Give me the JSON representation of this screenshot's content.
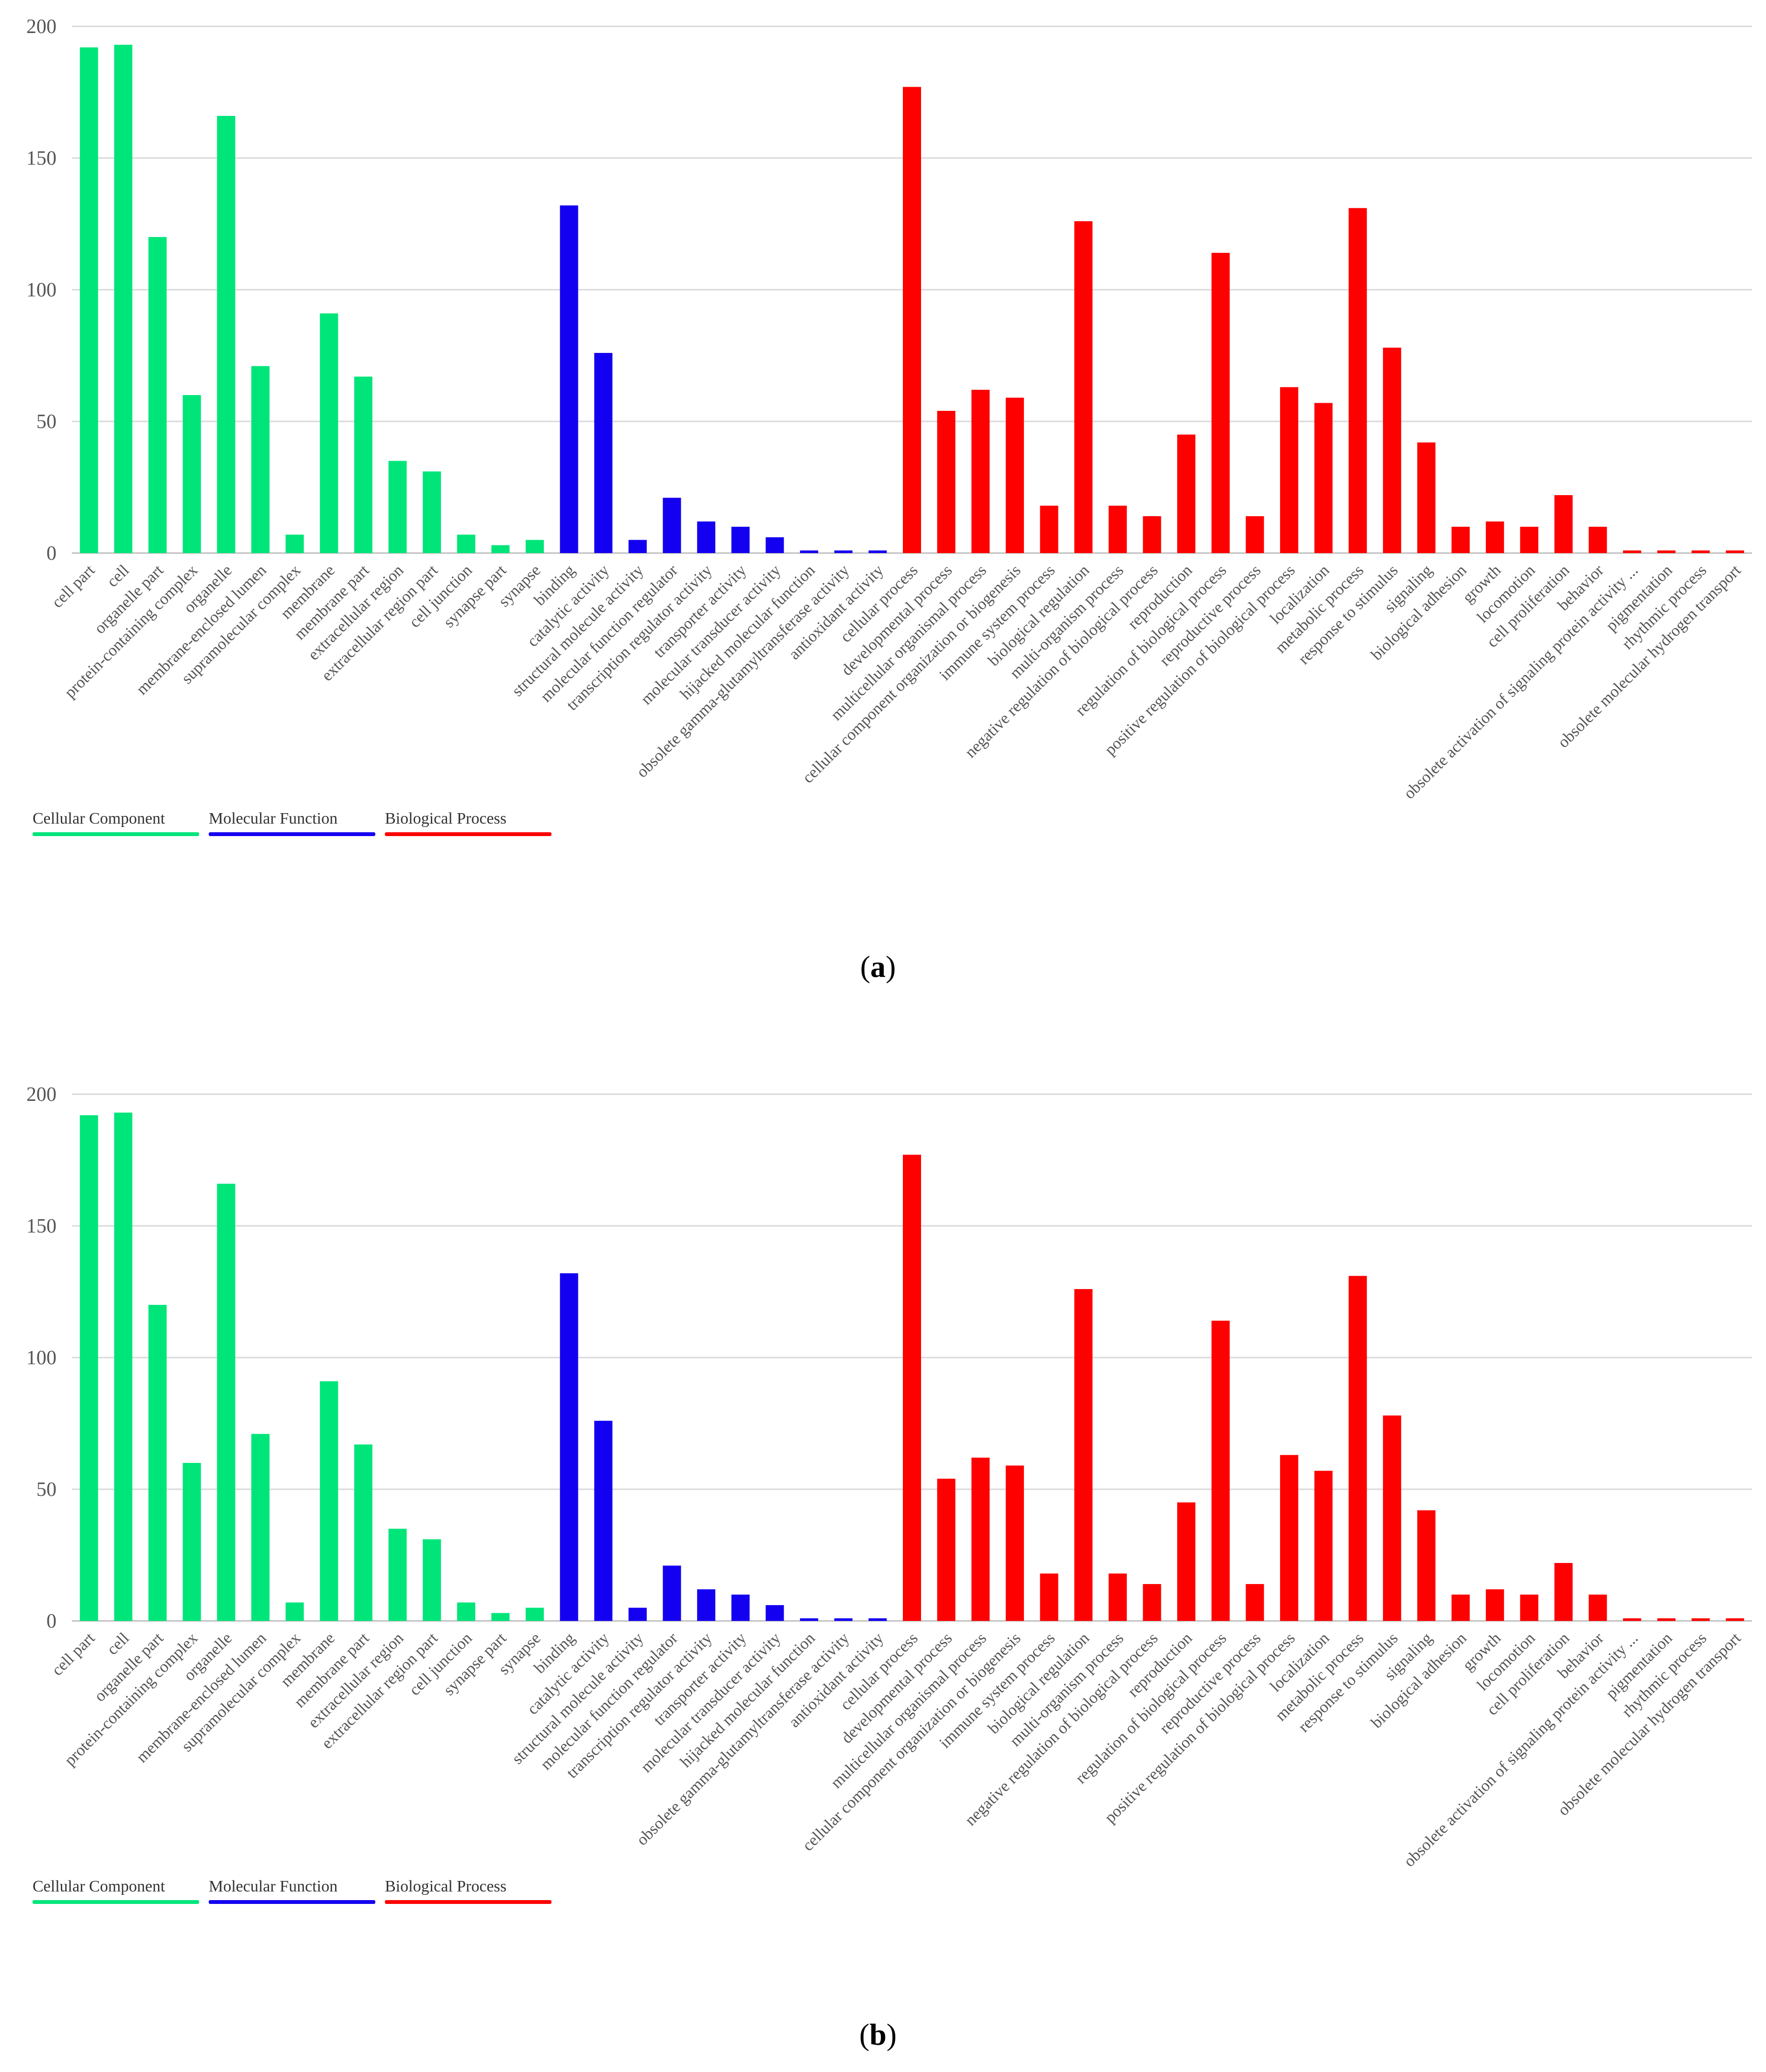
{
  "colors": {
    "Cellular Component": "#00e57a",
    "Molecular Function": "#1400f0",
    "Biological Process": "#ff0000"
  },
  "chart_data": [
    {
      "type": "bar",
      "caption": "a",
      "title": "",
      "xlabel": "",
      "ylabel": "",
      "ylim": [
        0,
        200
      ],
      "yticks": [
        "0",
        "50",
        "100",
        "150",
        "200"
      ],
      "grid": true,
      "legend": [
        "Cellular Component",
        "Molecular Function",
        "Biological Process"
      ],
      "legend_position": "bottom-left",
      "categories": [
        "cell part",
        "cell",
        "organelle part",
        "protein-containing complex",
        "organelle",
        "membrane-enclosed lumen",
        "supramolecular complex",
        "membrane",
        "membrane part",
        "extracellular region",
        "extracellular region part",
        "cell junction",
        "synapse part",
        "synapse",
        "binding",
        "catalytic activity",
        "structural molecule activity",
        "molecular function regulator",
        "transcription regulator activity",
        "transporter activity",
        "molecular transducer activity",
        "hijacked molecular function",
        "obsolete gamma-glutamyltransferase activity",
        "antioxidant activity",
        "cellular process",
        "developmental process",
        "multicellular organismal process",
        "cellular component organization or biogenesis",
        "immune system process",
        "biological regulation",
        "multi-organism process",
        "negative regulation of biological process",
        "reproduction",
        "regulation of biological process",
        "reproductive process",
        "positive regulation of biological process",
        "localization",
        "metabolic process",
        "response to stimulus",
        "signaling",
        "biological adhesion",
        "growth",
        "locomotion",
        "cell proliferation",
        "behavior",
        "obsolete activation of signaling protein activity ...",
        "pigmentation",
        "rhythmic process",
        "obsolete molecular hydrogen transport"
      ],
      "groups": [
        "Cellular Component",
        "Cellular Component",
        "Cellular Component",
        "Cellular Component",
        "Cellular Component",
        "Cellular Component",
        "Cellular Component",
        "Cellular Component",
        "Cellular Component",
        "Cellular Component",
        "Cellular Component",
        "Cellular Component",
        "Cellular Component",
        "Cellular Component",
        "Molecular Function",
        "Molecular Function",
        "Molecular Function",
        "Molecular Function",
        "Molecular Function",
        "Molecular Function",
        "Molecular Function",
        "Molecular Function",
        "Molecular Function",
        "Molecular Function",
        "Biological Process",
        "Biological Process",
        "Biological Process",
        "Biological Process",
        "Biological Process",
        "Biological Process",
        "Biological Process",
        "Biological Process",
        "Biological Process",
        "Biological Process",
        "Biological Process",
        "Biological Process",
        "Biological Process",
        "Biological Process",
        "Biological Process",
        "Biological Process",
        "Biological Process",
        "Biological Process",
        "Biological Process",
        "Biological Process",
        "Biological Process",
        "Biological Process",
        "Biological Process",
        "Biological Process",
        "Biological Process"
      ],
      "values": [
        192,
        193,
        120,
        60,
        166,
        71,
        7,
        91,
        67,
        35,
        31,
        7,
        3,
        5,
        132,
        76,
        5,
        21,
        12,
        10,
        6,
        1,
        1,
        1,
        177,
        54,
        62,
        59,
        18,
        126,
        18,
        14,
        45,
        114,
        14,
        63,
        57,
        131,
        78,
        42,
        10,
        12,
        10,
        22,
        10,
        1,
        1,
        1,
        1
      ]
    },
    {
      "type": "bar",
      "caption": "b",
      "title": "",
      "xlabel": "",
      "ylabel": "",
      "ylim": [
        0,
        200
      ],
      "yticks": [
        "0",
        "50",
        "100",
        "150",
        "200"
      ],
      "grid": true,
      "legend": [
        "Cellular Component",
        "Molecular Function",
        "Biological Process"
      ],
      "legend_position": "bottom-left",
      "categories": [
        "cell part",
        "cell",
        "organelle part",
        "protein-containing complex",
        "organelle",
        "membrane-enclosed lumen",
        "supramolecular complex",
        "membrane",
        "membrane part",
        "extracellular region",
        "extracellular region part",
        "cell junction",
        "synapse part",
        "synapse",
        "binding",
        "catalytic activity",
        "structural molecule activity",
        "molecular function regulator",
        "transcription regulator activity",
        "transporter activity",
        "molecular transducer activity",
        "hijacked molecular function",
        "obsolete gamma-glutamyltransferase activity",
        "antioxidant activity",
        "cellular process",
        "developmental process",
        "multicellular organismal process",
        "cellular component organization or biogenesis",
        "immune system process",
        "biological regulation",
        "multi-organism process",
        "negative regulation of biological process",
        "reproduction",
        "regulation of biological process",
        "reproductive process",
        "positive regulation of biological process",
        "localization",
        "metabolic process",
        "response to stimulus",
        "signaling",
        "biological adhesion",
        "growth",
        "locomotion",
        "cell proliferation",
        "behavior",
        "obsolete activation of signaling protein activity ...",
        "pigmentation",
        "rhythmic process",
        "obsolete molecular hydrogen transport"
      ],
      "groups": [
        "Cellular Component",
        "Cellular Component",
        "Cellular Component",
        "Cellular Component",
        "Cellular Component",
        "Cellular Component",
        "Cellular Component",
        "Cellular Component",
        "Cellular Component",
        "Cellular Component",
        "Cellular Component",
        "Cellular Component",
        "Cellular Component",
        "Cellular Component",
        "Molecular Function",
        "Molecular Function",
        "Molecular Function",
        "Molecular Function",
        "Molecular Function",
        "Molecular Function",
        "Molecular Function",
        "Molecular Function",
        "Molecular Function",
        "Molecular Function",
        "Biological Process",
        "Biological Process",
        "Biological Process",
        "Biological Process",
        "Biological Process",
        "Biological Process",
        "Biological Process",
        "Biological Process",
        "Biological Process",
        "Biological Process",
        "Biological Process",
        "Biological Process",
        "Biological Process",
        "Biological Process",
        "Biological Process",
        "Biological Process",
        "Biological Process",
        "Biological Process",
        "Biological Process",
        "Biological Process",
        "Biological Process",
        "Biological Process",
        "Biological Process",
        "Biological Process",
        "Biological Process"
      ],
      "values": [
        192,
        193,
        120,
        60,
        166,
        71,
        7,
        91,
        67,
        35,
        31,
        7,
        3,
        5,
        132,
        76,
        5,
        21,
        12,
        10,
        6,
        1,
        1,
        1,
        177,
        54,
        62,
        59,
        18,
        126,
        18,
        14,
        45,
        114,
        14,
        63,
        57,
        131,
        78,
        42,
        10,
        12,
        10,
        22,
        10,
        1,
        1,
        1,
        1
      ]
    }
  ]
}
